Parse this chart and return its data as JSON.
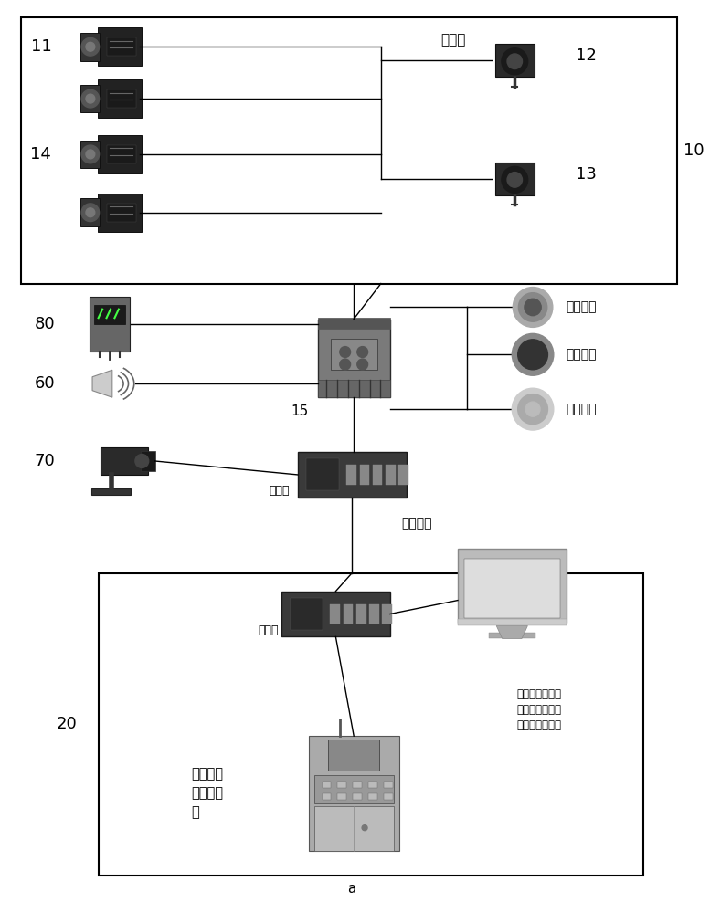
{
  "title": "a",
  "bg_color": "#ffffff",
  "box10_label": "10",
  "box10_title": "本地端",
  "box20_label": "20",
  "label_11": "11",
  "label_12": "12",
  "label_13": "13",
  "label_14": "14",
  "label_15": "15",
  "label_60": "60",
  "label_70": "70",
  "label_80": "80",
  "signal1": "开斗信号",
  "signal2": "闭斗信号",
  "signal3": "鸣笛信号",
  "switch_label1": "交换机",
  "switch_label2": "交换机",
  "fiber_label": "光纤连接",
  "pc_label": "工控机用于查看\n现场画面，查看\n并记录放料数据",
  "console_label": "控制台用\n于远程控\n制"
}
